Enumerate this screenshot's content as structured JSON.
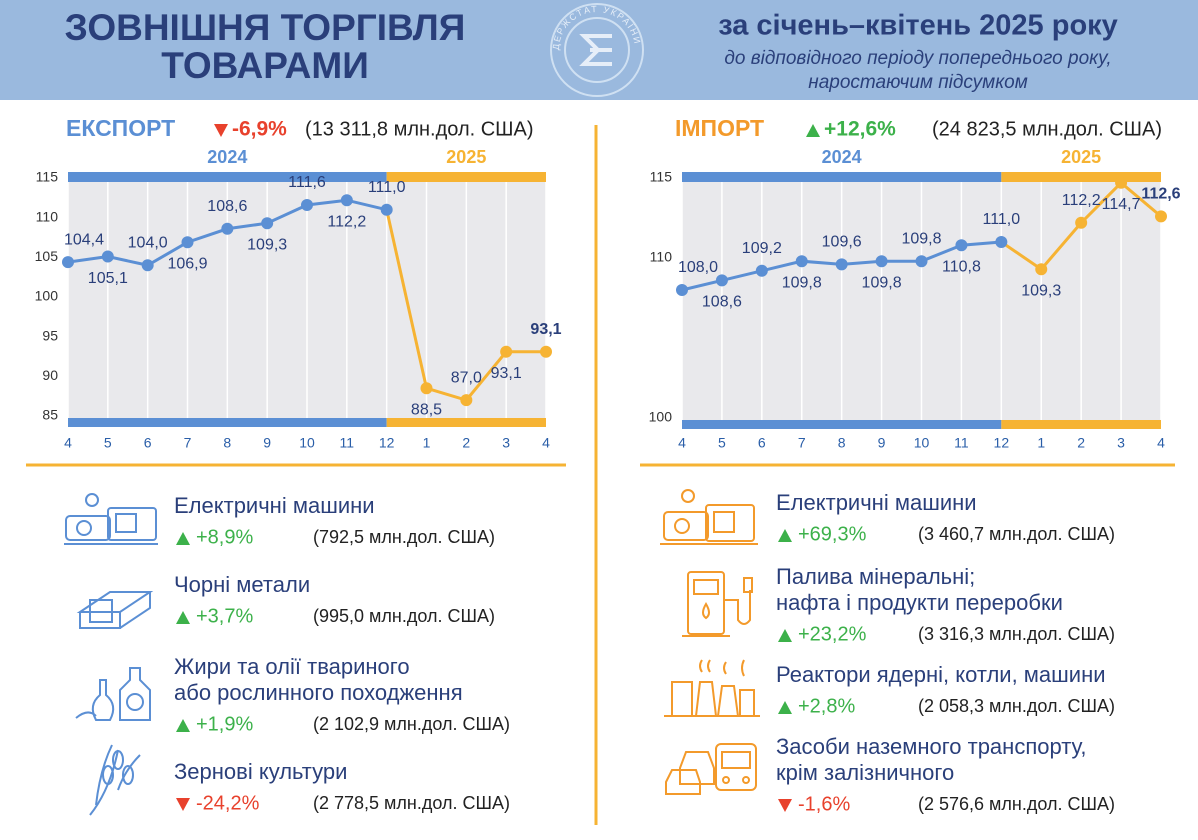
{
  "header": {
    "title_lines": [
      "ЗОВНІШНЯ ТОРГІВЛЯ",
      "ТОВАРАМИ"
    ],
    "logo_text": "ДЕРЖСТАТ УКРАЇНИ",
    "period": "за січень–квітень 2025 року",
    "subtitle_lines": [
      "до відповідного періоду попереднього року,",
      "наростаючим підсумком"
    ]
  },
  "chart_data": [
    {
      "type": "line",
      "title": "ЕКСПОРТ",
      "change": "-6,9%",
      "total": "(13 311,8  млн.дол. США)",
      "year_labels": [
        "2024",
        "2025"
      ],
      "year_colors": [
        "#5b8fd4",
        "#f6b333"
      ],
      "categories": [
        "4",
        "5",
        "6",
        "7",
        "8",
        "9",
        "10",
        "11",
        "12",
        "1",
        "2",
        "3",
        "4"
      ],
      "values": [
        104.4,
        105.1,
        104.0,
        106.9,
        108.6,
        109.3,
        111.6,
        112.2,
        111.0,
        88.5,
        87.0,
        93.1,
        93.1
      ],
      "value_labels": [
        "104,4",
        "105,1",
        "104,0",
        "106,9",
        "108,6",
        "109,3",
        "111,6",
        "112,2",
        "111,0",
        "88,5",
        "87,0",
        "93,1",
        "93,1"
      ],
      "ylim": [
        85,
        115
      ],
      "yticks": [
        85,
        90,
        95,
        100,
        105,
        110,
        115
      ]
    },
    {
      "type": "line",
      "title": "ІМПОРТ",
      "change": "+12,6%",
      "total": "(24 823,5 млн.дол. США)",
      "year_labels": [
        "2024",
        "2025"
      ],
      "year_colors": [
        "#5b8fd4",
        "#f6b333"
      ],
      "categories": [
        "4",
        "5",
        "6",
        "7",
        "8",
        "9",
        "10",
        "11",
        "12",
        "1",
        "2",
        "3",
        "4"
      ],
      "values": [
        108.0,
        108.6,
        109.2,
        109.8,
        109.6,
        109.8,
        109.8,
        110.8,
        111.0,
        109.3,
        112.2,
        114.7,
        112.6
      ],
      "value_labels": [
        "108,0",
        "108,6",
        "109,2",
        "109,8",
        "109,6",
        "109,8",
        "109,8",
        "110,8",
        "111,0",
        "109,3",
        "112,2",
        "114,7",
        "112,6"
      ],
      "ylim": [
        100,
        115
      ],
      "yticks": [
        100,
        110,
        115
      ]
    }
  ],
  "export_items": [
    {
      "label_lines": [
        "Електричні машини"
      ],
      "change": "+8,9%",
      "total": "(792,5 млн.дол. США)"
    },
    {
      "label_lines": [
        "Чорні метали"
      ],
      "change": "+3,7%",
      "total": "(995,0 млн.дол. США)"
    },
    {
      "label_lines": [
        "Жири та олії твариного",
        "або рослинного походження"
      ],
      "change": "+1,9%",
      "total": "(2 102,9 млн.дол. США)"
    },
    {
      "label_lines": [
        "Зернові культури"
      ],
      "change": "-24,2%",
      "total": "(2 778,5 млн.дол. США)"
    }
  ],
  "import_items": [
    {
      "label_lines": [
        "Електричні машини"
      ],
      "change": "+69,3%",
      "total": "(3 460,7 млн.дол. США)"
    },
    {
      "label_lines": [
        "Палива мінеральні;",
        "нафта і продукти переробки"
      ],
      "change": "+23,2%",
      "total": "(3 316,3 млн.дол. США)"
    },
    {
      "label_lines": [
        "Реактори ядерні, котли, машини"
      ],
      "change": "+2,8%",
      "total": "(2 058,3 млн.дол. США)"
    },
    {
      "label_lines": [
        "Засоби наземного транспорту,",
        "крім залізничного"
      ],
      "change": "-1,6%",
      "total": "(2 576,6 млн.дол. США)"
    }
  ]
}
